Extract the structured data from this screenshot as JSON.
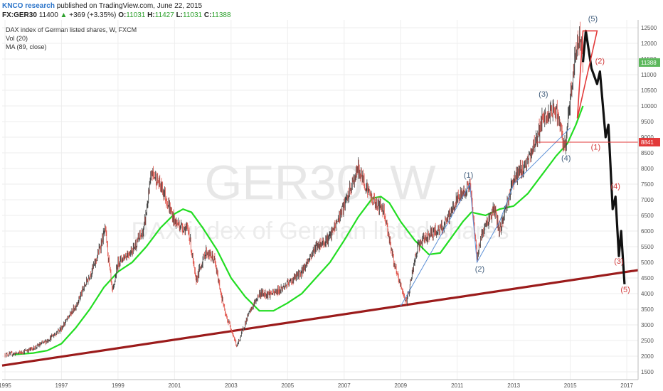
{
  "header": {
    "author": "KNCO research",
    "published": "published on TradingView.com, June 22, 2015",
    "symbol": "FX:GER30",
    "last": "11400",
    "change_arrow": "▲",
    "change": "+369 (+3.35%)",
    "o_label": "O:",
    "o_value": "11031",
    "h_label": "H:",
    "h_value": "11427",
    "l_label": "L:",
    "l_value": "11031",
    "c_label": "C:",
    "c_value": "11388"
  },
  "legend": {
    "title": "DAX index of German listed shares, W, FXCM",
    "vol": "Vol (20)",
    "ma": "MA (89, close)"
  },
  "watermark": {
    "symbol": "GER30, W",
    "description": "DAX index of German listed shares"
  },
  "colors": {
    "candle_up": "#3a3a3a",
    "candle_down": "#e0534a",
    "ma": "#22dd22",
    "trendline": "#9b1b1b",
    "projection": "#111111",
    "wave_blue": "#44607e",
    "wave_red": "#d23a3a",
    "level_red": "#e23a3a",
    "price_tag_green": "#5cb85c",
    "axis_text": "#555555"
  },
  "chart_data": {
    "type": "candlestick",
    "title": "DAX index of German listed shares, W, FXCM",
    "x_ticks": [
      "1995",
      "1997",
      "1999",
      "2001",
      "2003",
      "2005",
      "2007",
      "2009",
      "2011",
      "2013",
      "2015",
      "2017"
    ],
    "y_ticks": [
      1500,
      2000,
      2500,
      3000,
      3500,
      4000,
      4500,
      5000,
      5500,
      6000,
      6500,
      7000,
      7500,
      8000,
      8500,
      9000,
      9500,
      10000,
      10500,
      11000,
      11500,
      12000,
      12500
    ],
    "ylim": [
      1250,
      12750
    ],
    "xlim": [
      1994.9,
      2017.4
    ],
    "price_path": [
      [
        1995.0,
        2050
      ],
      [
        1995.5,
        2100
      ],
      [
        1996.0,
        2250
      ],
      [
        1996.5,
        2500
      ],
      [
        1997.0,
        2900
      ],
      [
        1997.5,
        3600
      ],
      [
        1997.8,
        4200
      ],
      [
        1998.2,
        5000
      ],
      [
        1998.55,
        6050
      ],
      [
        1998.8,
        4000
      ],
      [
        1999.0,
        5000
      ],
      [
        1999.5,
        5400
      ],
      [
        1999.9,
        6000
      ],
      [
        2000.2,
        7900
      ],
      [
        2000.6,
        7300
      ],
      [
        2001.0,
        6300
      ],
      [
        2001.5,
        6000
      ],
      [
        2001.75,
        4400
      ],
      [
        2002.1,
        5350
      ],
      [
        2002.4,
        5100
      ],
      [
        2002.8,
        3300
      ],
      [
        2003.0,
        2900
      ],
      [
        2003.2,
        2300
      ],
      [
        2003.6,
        3300
      ],
      [
        2004.0,
        4000
      ],
      [
        2004.5,
        4000
      ],
      [
        2005.0,
        4300
      ],
      [
        2005.5,
        4700
      ],
      [
        2006.0,
        5500
      ],
      [
        2006.5,
        5800
      ],
      [
        2007.0,
        6800
      ],
      [
        2007.5,
        8000
      ],
      [
        2008.0,
        7000
      ],
      [
        2008.4,
        6700
      ],
      [
        2008.8,
        4800
      ],
      [
        2009.2,
        3700
      ],
      [
        2009.6,
        5500
      ],
      [
        2010.0,
        5900
      ],
      [
        2010.5,
        6100
      ],
      [
        2011.0,
        7000
      ],
      [
        2011.45,
        7500
      ],
      [
        2011.7,
        5200
      ],
      [
        2011.9,
        6000
      ],
      [
        2012.3,
        6700
      ],
      [
        2012.5,
        6000
      ],
      [
        2013.0,
        7700
      ],
      [
        2013.5,
        8200
      ],
      [
        2014.0,
        9500
      ],
      [
        2014.5,
        9900
      ],
      [
        2014.8,
        8600
      ],
      [
        2015.2,
        11800
      ],
      [
        2015.35,
        12300
      ],
      [
        2015.45,
        11400
      ]
    ],
    "projection_path": [
      [
        2015.45,
        11400
      ],
      [
        2015.55,
        12400
      ],
      [
        2015.75,
        11200
      ],
      [
        2015.95,
        10700
      ],
      [
        2016.05,
        11100
      ],
      [
        2016.25,
        9000
      ],
      [
        2016.35,
        9400
      ],
      [
        2016.5,
        6700
      ],
      [
        2016.6,
        7100
      ],
      [
        2016.72,
        5200
      ],
      [
        2016.8,
        6000
      ],
      [
        2016.92,
        4300
      ]
    ],
    "ma_89": [
      [
        1995.3,
        2050
      ],
      [
        1996.0,
        2100
      ],
      [
        1996.5,
        2180
      ],
      [
        1997.0,
        2400
      ],
      [
        1997.5,
        2900
      ],
      [
        1998.0,
        3500
      ],
      [
        1998.5,
        4200
      ],
      [
        1999.0,
        4700
      ],
      [
        1999.5,
        5000
      ],
      [
        2000.0,
        5500
      ],
      [
        2000.5,
        6100
      ],
      [
        2001.0,
        6550
      ],
      [
        2001.3,
        6700
      ],
      [
        2001.6,
        6600
      ],
      [
        2002.0,
        6100
      ],
      [
        2002.5,
        5400
      ],
      [
        2003.0,
        4500
      ],
      [
        2003.5,
        3900
      ],
      [
        2004.0,
        3450
      ],
      [
        2004.5,
        3450
      ],
      [
        2005.0,
        3700
      ],
      [
        2005.5,
        4000
      ],
      [
        2006.0,
        4500
      ],
      [
        2006.5,
        5000
      ],
      [
        2007.0,
        5700
      ],
      [
        2007.5,
        6450
      ],
      [
        2008.0,
        7050
      ],
      [
        2008.3,
        7100
      ],
      [
        2008.6,
        6900
      ],
      [
        2009.0,
        6300
      ],
      [
        2009.5,
        5700
      ],
      [
        2010.0,
        5250
      ],
      [
        2010.4,
        5300
      ],
      [
        2010.8,
        5800
      ],
      [
        2011.2,
        6300
      ],
      [
        2011.5,
        6600
      ],
      [
        2012.0,
        6500
      ],
      [
        2012.5,
        6700
      ],
      [
        2013.0,
        6800
      ],
      [
        2013.5,
        7200
      ],
      [
        2014.0,
        7800
      ],
      [
        2014.5,
        8400
      ],
      [
        2014.9,
        8800
      ],
      [
        2015.2,
        9400
      ],
      [
        2015.45,
        10000
      ]
    ],
    "trendline": [
      [
        1994.9,
        1700
      ],
      [
        2017.4,
        4750
      ]
    ],
    "horizontal_level": {
      "value": 8841,
      "from": 2013.8
    },
    "elliott_blue": [
      {
        "label": "(1)",
        "x": 2011.4,
        "y": 7700
      },
      {
        "label": "(2)",
        "x": 2011.8,
        "y": 4700
      },
      {
        "label": "(3)",
        "x": 2014.05,
        "y": 10300
      },
      {
        "label": "(4)",
        "x": 2014.85,
        "y": 8250
      },
      {
        "label": "(5)",
        "x": 2015.8,
        "y": 12700
      }
    ],
    "elliott_red": [
      {
        "label": "(2)",
        "x": 2016.05,
        "y": 11350
      },
      {
        "label": "(1)",
        "x": 2015.9,
        "y": 8600
      },
      {
        "label": "(4)",
        "x": 2016.6,
        "y": 7350
      },
      {
        "label": "(3)",
        "x": 2016.72,
        "y": 4950
      },
      {
        "label": "(5)",
        "x": 2016.95,
        "y": 4050
      }
    ],
    "price_tags": [
      {
        "label": "11388",
        "value": 11388,
        "color": "#5cb85c"
      },
      {
        "label": "8841",
        "value": 8841,
        "color": "#e23a3a"
      }
    ]
  }
}
